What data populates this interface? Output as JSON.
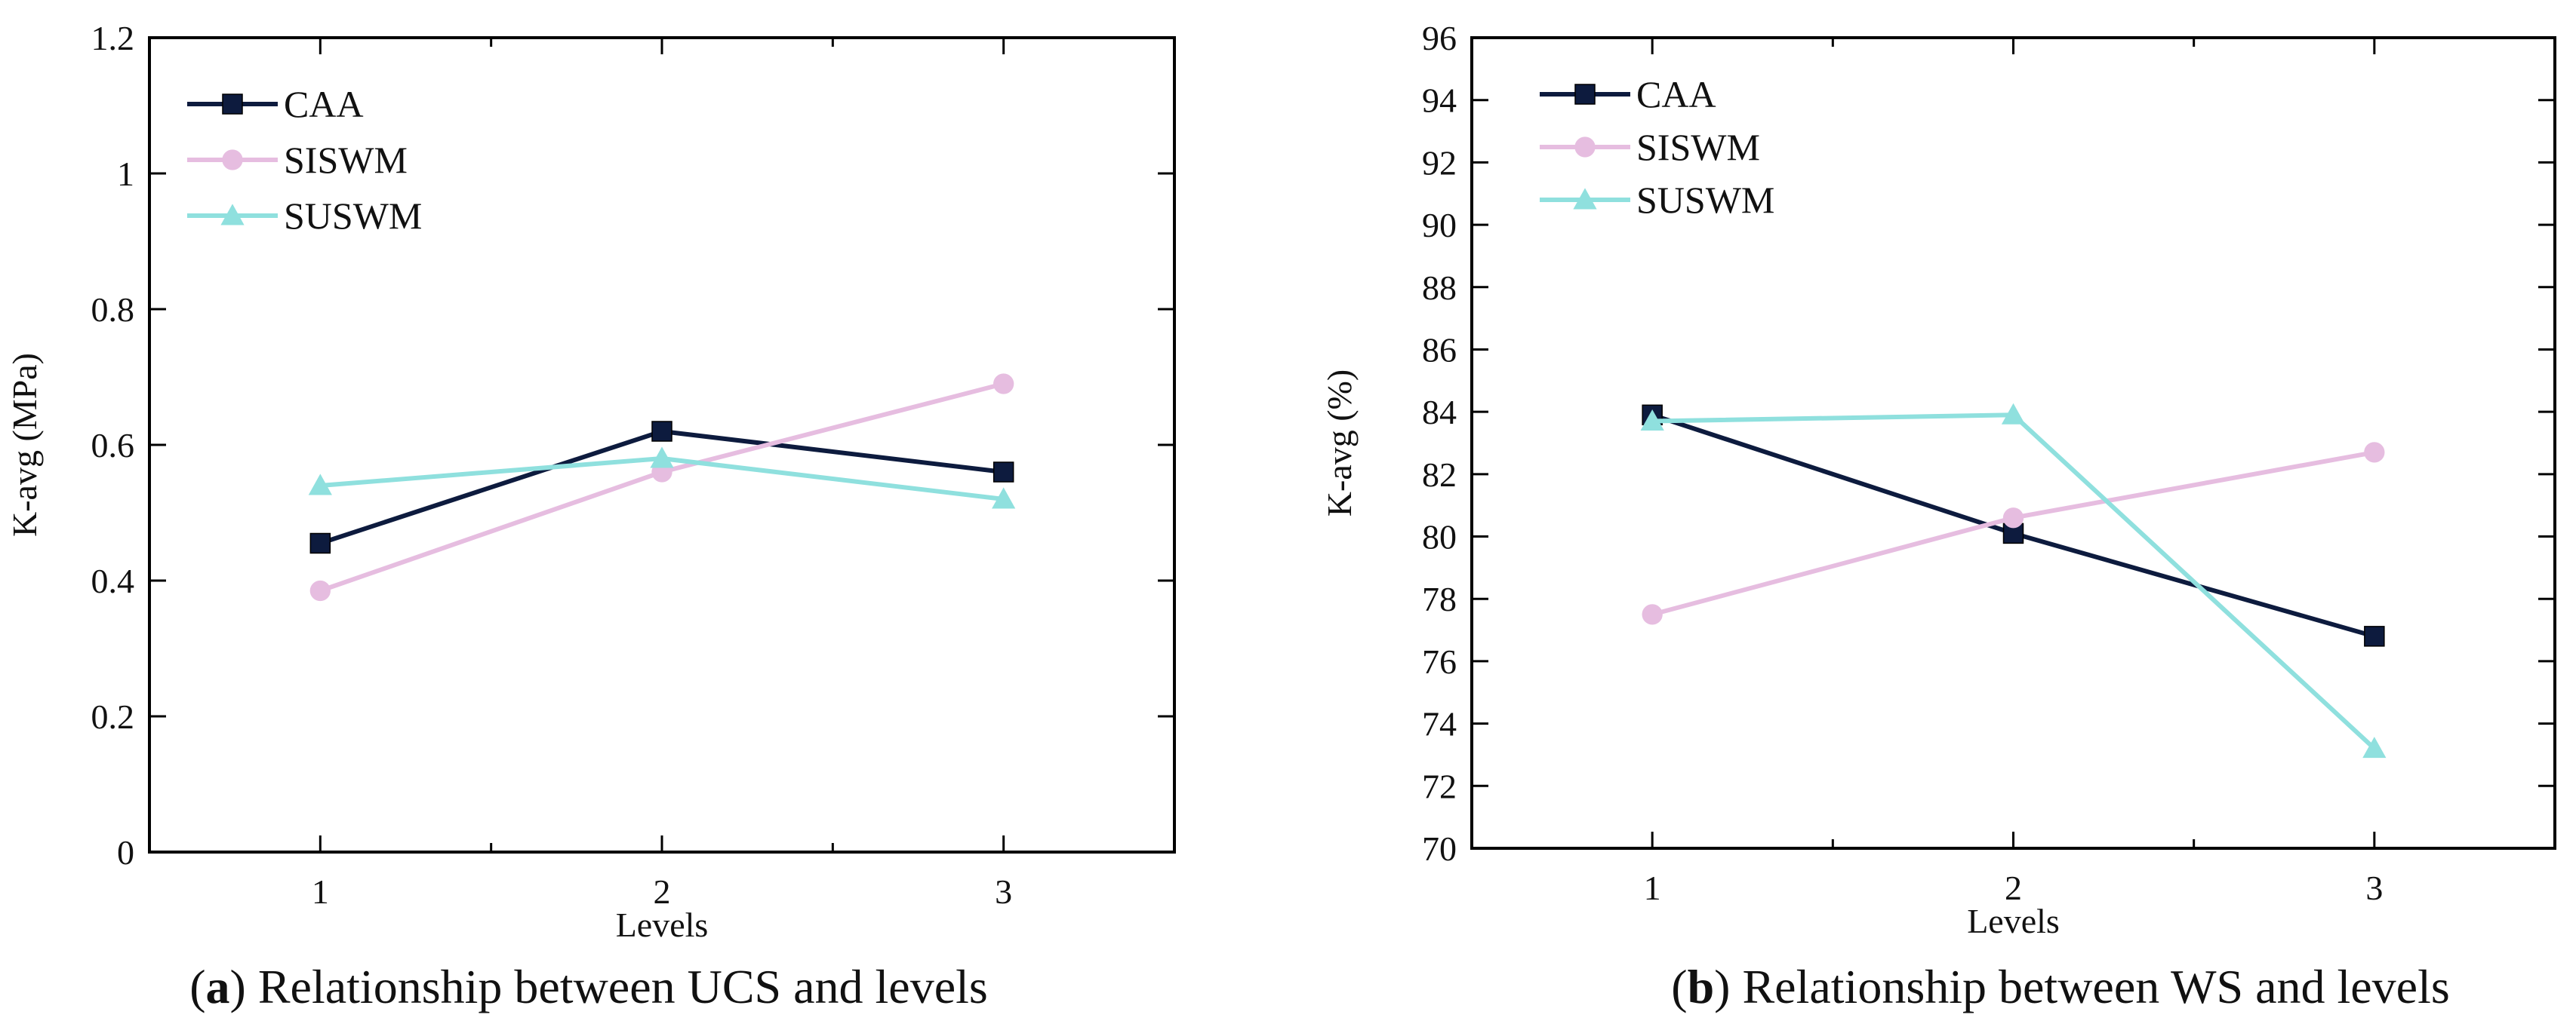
{
  "chart_data": [
    {
      "type": "line",
      "title": "",
      "xlabel": "Levels",
      "ylabel": "K-avg  (MPa)",
      "x": [
        1,
        2,
        3
      ],
      "xticks": [
        "1",
        "2",
        "3"
      ],
      "xlim": [
        0.5,
        3.5
      ],
      "ylim": [
        0,
        1.2
      ],
      "yticks": [
        "0",
        "0.2",
        "0.4",
        "0.6",
        "0.8",
        "1",
        "1.2"
      ],
      "legend": "top-left",
      "grid": false,
      "caption_label": "a",
      "caption_text": "Relationship between UCS and levels",
      "series": [
        {
          "name": "CAA",
          "values": [
            0.455,
            0.62,
            0.56
          ],
          "color": "#0d1b3e",
          "marker": "square"
        },
        {
          "name": "SISWM",
          "values": [
            0.385,
            0.56,
            0.69
          ],
          "color": "#e6bde0",
          "marker": "circle"
        },
        {
          "name": "SUSWM",
          "values": [
            0.54,
            0.58,
            0.52
          ],
          "color": "#8fe0de",
          "marker": "triangle"
        }
      ]
    },
    {
      "type": "line",
      "title": "",
      "xlabel": "Levels",
      "ylabel": "K-avg (%)",
      "x": [
        1,
        2,
        3
      ],
      "xticks": [
        "1",
        "2",
        "3"
      ],
      "xlim": [
        0.5,
        3.5
      ],
      "ylim": [
        70,
        96
      ],
      "yticks": [
        "70",
        "72",
        "74",
        "76",
        "78",
        "80",
        "82",
        "84",
        "86",
        "88",
        "90",
        "92",
        "94",
        "96"
      ],
      "legend": "top-left",
      "grid": false,
      "caption_label": "b",
      "caption_text": "Relationship between WS and levels",
      "series": [
        {
          "name": "CAA",
          "values": [
            83.9,
            80.1,
            76.8
          ],
          "color": "#0d1b3e",
          "marker": "square"
        },
        {
          "name": "SISWM",
          "values": [
            77.5,
            80.6,
            82.7
          ],
          "color": "#e6bde0",
          "marker": "circle"
        },
        {
          "name": "SUSWM",
          "values": [
            83.7,
            83.9,
            73.2
          ],
          "color": "#8fe0de",
          "marker": "triangle"
        }
      ]
    }
  ]
}
